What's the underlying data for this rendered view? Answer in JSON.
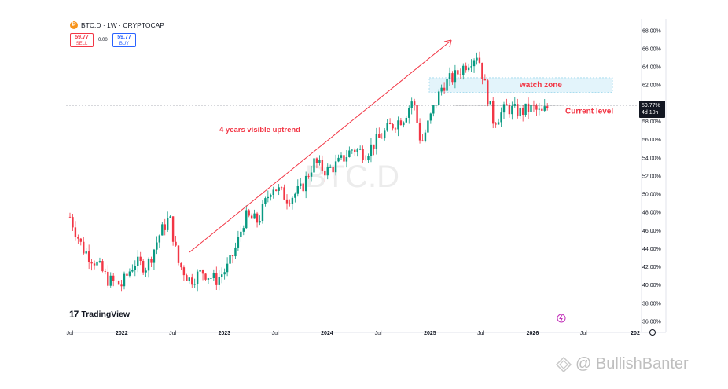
{
  "header": {
    "symbol": "BTC.D · 1W · CRYPTOCAP",
    "sell_price": "59.77",
    "sell_label": "SELL",
    "spread": "0.00",
    "buy_price": "59.77",
    "buy_label": "BUY"
  },
  "branding": {
    "tradingview": "TradingView",
    "watermark_text": "@ BullishBanter",
    "chart_watermark": "BTC.D"
  },
  "chart_data": {
    "type": "candlestick",
    "title": "",
    "ylabel": "",
    "y_scale": "linear",
    "ylim": [
      36,
      68.5
    ],
    "grid": false,
    "up_color": "#089981",
    "down_color": "#f23645",
    "y_ticks": [
      "68.00%",
      "66.00%",
      "64.00%",
      "62.00%",
      "60.00%",
      "58.00%",
      "56.00%",
      "54.00%",
      "52.00%",
      "50.00%",
      "48.00%",
      "46.00%",
      "44.00%",
      "42.00%",
      "40.00%",
      "38.00%",
      "36.00%"
    ],
    "x_ticks": [
      "Jul",
      "2022",
      "Jul",
      "2023",
      "Jul",
      "2024",
      "Jul",
      "2025",
      "Jul",
      "2026",
      "Jul",
      "202"
    ],
    "x_tick_dates": [
      "2021-07-01",
      "2022-01-01",
      "2022-07-01",
      "2023-01-01",
      "2023-07-01",
      "2024-01-01",
      "2024-07-01",
      "2025-01-01",
      "2025-07-01",
      "2026-01-01",
      "2026-07-01",
      "2027-01-01"
    ],
    "last_price": "59.77%",
    "countdown": "4d 10h",
    "last_value": 59.77,
    "dashed_level": 59.77,
    "series": [
      {
        "date": "2021-07-01",
        "close": 47.5
      },
      {
        "date": "2021-08-15",
        "close": 44.0
      },
      {
        "date": "2021-10-01",
        "close": 42.5
      },
      {
        "date": "2021-11-15",
        "close": 40.5
      },
      {
        "date": "2022-01-01",
        "close": 40.0
      },
      {
        "date": "2022-02-15",
        "close": 42.5
      },
      {
        "date": "2022-04-01",
        "close": 42.0
      },
      {
        "date": "2022-05-15",
        "close": 45.5
      },
      {
        "date": "2022-06-20",
        "close": 47.5
      },
      {
        "date": "2022-07-20",
        "close": 42.5
      },
      {
        "date": "2022-09-01",
        "close": 40.5
      },
      {
        "date": "2022-10-15",
        "close": 41.5
      },
      {
        "date": "2022-12-01",
        "close": 40.5
      },
      {
        "date": "2023-01-15",
        "close": 42.0
      },
      {
        "date": "2023-02-15",
        "close": 44.5
      },
      {
        "date": "2023-03-15",
        "close": 47.5
      },
      {
        "date": "2023-05-01",
        "close": 47.0
      },
      {
        "date": "2023-06-20",
        "close": 51.0
      },
      {
        "date": "2023-08-15",
        "close": 49.5
      },
      {
        "date": "2023-10-01",
        "close": 50.5
      },
      {
        "date": "2023-11-15",
        "close": 53.5
      },
      {
        "date": "2024-01-01",
        "close": 52.5
      },
      {
        "date": "2024-02-15",
        "close": 53.5
      },
      {
        "date": "2024-04-01",
        "close": 55.0
      },
      {
        "date": "2024-05-15",
        "close": 54.5
      },
      {
        "date": "2024-07-01",
        "close": 56.0
      },
      {
        "date": "2024-08-15",
        "close": 57.5
      },
      {
        "date": "2024-10-01",
        "close": 58.5
      },
      {
        "date": "2024-11-01",
        "close": 60.5
      },
      {
        "date": "2024-12-01",
        "close": 55.5
      },
      {
        "date": "2025-01-15",
        "close": 59.5
      },
      {
        "date": "2025-02-15",
        "close": 62.0
      },
      {
        "date": "2025-04-01",
        "close": 63.0
      },
      {
        "date": "2025-05-15",
        "close": 64.5
      },
      {
        "date": "2025-06-20",
        "close": 65.5
      },
      {
        "date": "2025-07-15",
        "close": 62.0
      },
      {
        "date": "2025-08-15",
        "close": 58.0
      },
      {
        "date": "2025-10-01",
        "close": 59.5
      },
      {
        "date": "2025-11-15",
        "close": 59.0
      },
      {
        "date": "2026-01-01",
        "close": 59.5
      },
      {
        "date": "2026-02-01",
        "close": 58.8
      },
      {
        "date": "2026-03-01",
        "close": 59.77
      }
    ],
    "annotations": [
      {
        "text": "4 years  visible uptrend",
        "color": "#f23645"
      },
      {
        "text": "watch zone",
        "color": "#f23645",
        "from": 61.2,
        "to": 62.8
      },
      {
        "text": "Current level",
        "color": "#f23645",
        "level": 59.8
      }
    ]
  }
}
